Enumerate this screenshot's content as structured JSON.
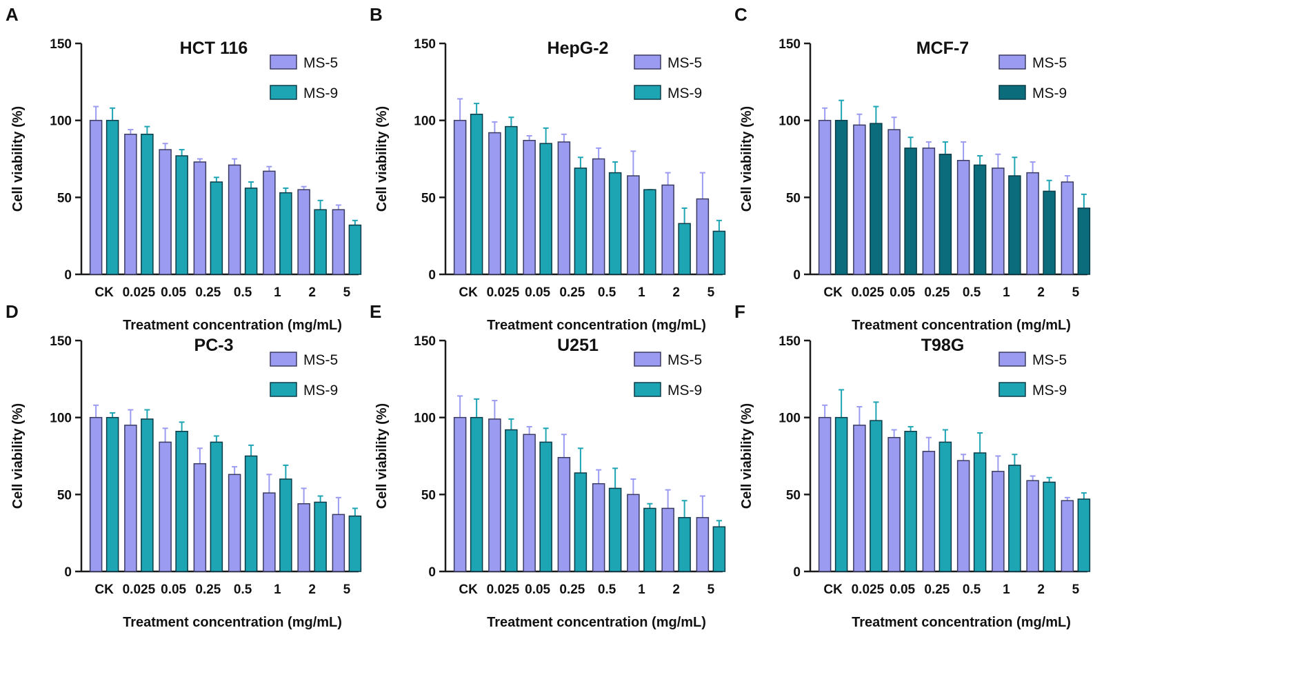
{
  "figure": {
    "panels": [
      "A",
      "B",
      "C",
      "D",
      "E",
      "F"
    ]
  },
  "colors": {
    "ms5": "#9b9bf2",
    "ms5_stroke": "#3a3a60",
    "ms9": "#1ea5b4",
    "ms9_dark": "#0b6d7c",
    "ms9_stroke": "#0a3b46",
    "axis": "#1a1a1a"
  },
  "chart_data": [
    {
      "panel": "A",
      "type": "bar",
      "title": "HCT 116",
      "xlabel": "Treatment concentration (mg/mL)",
      "ylabel": "Cell viability (%)",
      "ylim": [
        0,
        150
      ],
      "yticks": [
        0,
        50,
        100,
        150
      ],
      "categories": [
        "CK",
        "0.025",
        "0.05",
        "0.25",
        "0.5",
        "1",
        "2",
        "5"
      ],
      "legend_position": "top-right",
      "grid": false,
      "series": [
        {
          "name": "MS-5",
          "color": "#9b9bf2",
          "values": [
            100,
            91,
            81,
            73,
            71,
            67,
            55,
            42
          ],
          "errors": [
            9,
            3,
            4,
            2,
            4,
            3,
            2,
            3
          ]
        },
        {
          "name": "MS-9",
          "color": "#1ea5b4",
          "values": [
            100,
            91,
            77,
            60,
            56,
            53,
            42,
            32
          ],
          "errors": [
            8,
            5,
            4,
            3,
            4,
            3,
            6,
            3
          ]
        }
      ]
    },
    {
      "panel": "B",
      "type": "bar",
      "title": "HepG-2",
      "xlabel": "Treatment concentration (mg/mL)",
      "ylabel": "Cell viability (%)",
      "ylim": [
        0,
        150
      ],
      "yticks": [
        0,
        50,
        100,
        150
      ],
      "categories": [
        "CK",
        "0.025",
        "0.05",
        "0.25",
        "0.5",
        "1",
        "2",
        "5"
      ],
      "legend_position": "top-right",
      "grid": false,
      "series": [
        {
          "name": "MS-5",
          "color": "#9b9bf2",
          "values": [
            100,
            92,
            87,
            86,
            75,
            64,
            58,
            49
          ],
          "errors": [
            14,
            7,
            3,
            5,
            7,
            16,
            8,
            17
          ]
        },
        {
          "name": "MS-9",
          "color": "#1ea5b4",
          "values": [
            104,
            96,
            85,
            69,
            66,
            55,
            33,
            28
          ],
          "errors": [
            7,
            6,
            10,
            7,
            7,
            0,
            10,
            7
          ]
        }
      ]
    },
    {
      "panel": "C",
      "type": "bar",
      "title": "MCF-7",
      "xlabel": "Treatment concentration (mg/mL)",
      "ylabel": "Cell viability (%)",
      "ylim": [
        0,
        150
      ],
      "yticks": [
        0,
        50,
        100,
        150
      ],
      "categories": [
        "CK",
        "0.025",
        "0.05",
        "0.25",
        "0.5",
        "1",
        "2",
        "5"
      ],
      "legend_position": "top-right",
      "grid": false,
      "series": [
        {
          "name": "MS-5",
          "color": "#9b9bf2",
          "values": [
            100,
            97,
            94,
            82,
            74,
            69,
            66,
            60
          ],
          "errors": [
            8,
            7,
            8,
            4,
            12,
            9,
            7,
            4
          ]
        },
        {
          "name": "MS-9",
          "color": "#0b6d7c",
          "values": [
            100,
            98,
            82,
            78,
            71,
            64,
            54,
            43
          ],
          "errors": [
            13,
            11,
            7,
            8,
            6,
            12,
            7,
            9
          ]
        }
      ]
    },
    {
      "panel": "D",
      "type": "bar",
      "title": "PC-3",
      "xlabel": "Treatment concentration (mg/mL)",
      "ylabel": "Cell viability (%)",
      "ylim": [
        0,
        150
      ],
      "yticks": [
        0,
        50,
        100,
        150
      ],
      "categories": [
        "CK",
        "0.025",
        "0.05",
        "0.25",
        "0.5",
        "1",
        "2",
        "5"
      ],
      "legend_position": "top-right",
      "grid": false,
      "series": [
        {
          "name": "MS-5",
          "color": "#9b9bf2",
          "values": [
            100,
            95,
            84,
            70,
            63,
            51,
            44,
            37
          ],
          "errors": [
            8,
            10,
            9,
            10,
            5,
            12,
            10,
            11
          ]
        },
        {
          "name": "MS-9",
          "color": "#1ea5b4",
          "values": [
            100,
            99,
            91,
            84,
            75,
            60,
            45,
            36
          ],
          "errors": [
            3,
            6,
            6,
            4,
            7,
            9,
            4,
            5
          ]
        }
      ]
    },
    {
      "panel": "E",
      "type": "bar",
      "title": "U251",
      "xlabel": "Treatment concentration (mg/mL)",
      "ylabel": "Cell viability (%)",
      "ylim": [
        0,
        150
      ],
      "yticks": [
        0,
        50,
        100,
        150
      ],
      "categories": [
        "CK",
        "0.025",
        "0.05",
        "0.25",
        "0.5",
        "1",
        "2",
        "5"
      ],
      "legend_position": "top-right",
      "grid": false,
      "series": [
        {
          "name": "MS-5",
          "color": "#9b9bf2",
          "values": [
            100,
            99,
            89,
            74,
            57,
            50,
            41,
            35
          ],
          "errors": [
            14,
            12,
            5,
            15,
            9,
            10,
            12,
            14
          ]
        },
        {
          "name": "MS-9",
          "color": "#1ea5b4",
          "values": [
            100,
            92,
            84,
            64,
            54,
            41,
            35,
            29
          ],
          "errors": [
            12,
            7,
            9,
            16,
            13,
            3,
            11,
            4
          ]
        }
      ]
    },
    {
      "panel": "F",
      "type": "bar",
      "title": "T98G",
      "xlabel": "Treatment concentration (mg/mL)",
      "ylabel": "Cell viability (%)",
      "ylim": [
        0,
        150
      ],
      "yticks": [
        0,
        50,
        100,
        150
      ],
      "categories": [
        "CK",
        "0.025",
        "0.05",
        "0.25",
        "0.5",
        "1",
        "2",
        "5"
      ],
      "legend_position": "top-right",
      "grid": false,
      "series": [
        {
          "name": "MS-5",
          "color": "#9b9bf2",
          "values": [
            100,
            95,
            87,
            78,
            72,
            65,
            59,
            46
          ],
          "errors": [
            8,
            12,
            5,
            9,
            4,
            10,
            3,
            2
          ]
        },
        {
          "name": "MS-9",
          "color": "#1ea5b4",
          "values": [
            100,
            98,
            91,
            84,
            77,
            69,
            58,
            47
          ],
          "errors": [
            18,
            12,
            3,
            8,
            13,
            7,
            3,
            4
          ]
        }
      ]
    }
  ]
}
